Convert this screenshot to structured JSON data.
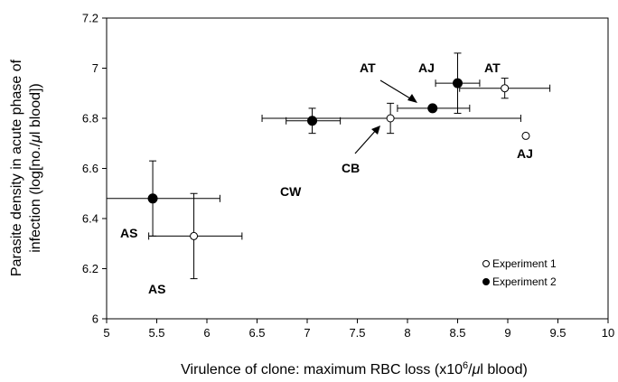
{
  "chart_data": {
    "type": "scatter",
    "xlabel": "Virulence of clone: maximum RBC loss (x10",
    "xlabel_sup": "6",
    "xlabel_mu": "μ",
    "xlabel_end": "l blood)",
    "ylabel_line1": "Parasite density in acute phase of",
    "ylabel_line2_a": "infection (log[no./",
    "ylabel_line2_mu": "μ",
    "ylabel_line2_b": "l blood])",
    "xlim": [
      5,
      10
    ],
    "ylim": [
      6,
      7.2
    ],
    "xticks": [
      "5",
      "5.5",
      "6",
      "6.5",
      "7",
      "7.5",
      "8",
      "8.5",
      "9",
      "9.5",
      "10"
    ],
    "yticks": [
      "6",
      "6.2",
      "6.4",
      "6.6",
      "6.8",
      "7",
      "7.2"
    ],
    "grid": false,
    "legend_position": "bottom-right",
    "series": [
      {
        "name": "Experiment 1",
        "marker": "open-circle",
        "points": [
          {
            "x": 5.87,
            "y": 6.33,
            "xerr": [
              5.42,
              6.35
            ],
            "yerr": [
              6.16,
              6.5
            ]
          },
          {
            "x": 7.83,
            "y": 6.8,
            "xerr": [
              6.55,
              9.13
            ],
            "yerr": [
              6.74,
              6.86
            ]
          },
          {
            "x": 8.97,
            "y": 6.92,
            "xerr": [
              8.52,
              9.42
            ],
            "yerr": [
              6.88,
              6.96
            ]
          },
          {
            "x": 9.18,
            "y": 6.73
          }
        ]
      },
      {
        "name": "Experiment 2",
        "marker": "filled-circle",
        "points": [
          {
            "x": 5.46,
            "y": 6.48,
            "xerr": [
              4.8,
              6.13
            ],
            "yerr": [
              6.33,
              6.63
            ]
          },
          {
            "x": 7.05,
            "y": 6.79,
            "xerr": [
              6.79,
              7.33
            ],
            "yerr": [
              6.74,
              6.84
            ]
          },
          {
            "x": 8.25,
            "y": 6.84,
            "xerr": [
              7.9,
              8.62
            ],
            "yerr": [
              6.84,
              6.84
            ]
          },
          {
            "x": 8.5,
            "y": 6.94,
            "xerr": [
              8.28,
              8.72
            ],
            "yerr": [
              6.82,
              7.06
            ]
          }
        ]
      }
    ],
    "annotations": [
      "AS",
      "AS",
      "CW",
      "CB",
      "AT",
      "AJ",
      "AT",
      "AJ"
    ]
  }
}
